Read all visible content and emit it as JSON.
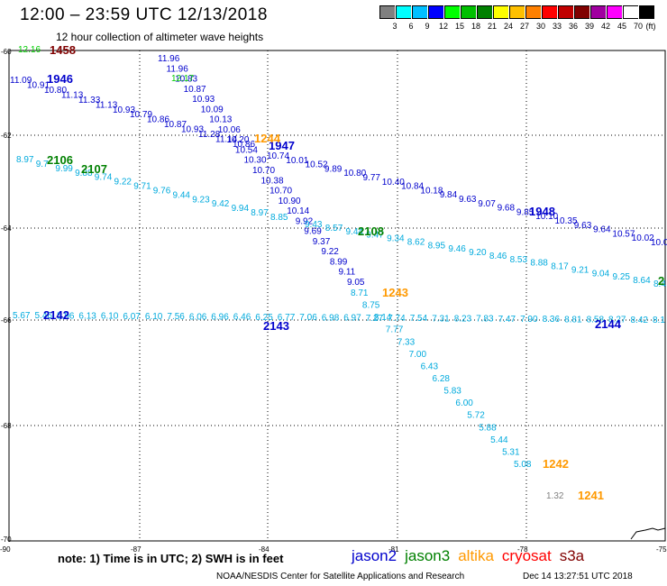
{
  "header": {
    "title": "12:00 – 23:59 UTC 12/13/2018",
    "subtitle": "12 hour collection of altimeter wave heights"
  },
  "color_scale": {
    "labels": [
      "3",
      "6",
      "9",
      "12",
      "15",
      "18",
      "21",
      "24",
      "27",
      "30",
      "33",
      "36",
      "39",
      "42",
      "45",
      "70"
    ],
    "unit": "(ft)",
    "colors": [
      "#808080",
      "#00ffff",
      "#00bfff",
      "#0000ff",
      "#00ff00",
      "#00c000",
      "#008000",
      "#ffff00",
      "#ffc000",
      "#ff8000",
      "#ff0000",
      "#c00000",
      "#800000",
      "#a000a0",
      "#ff00ff",
      "#ffffff",
      "#000000"
    ]
  },
  "map": {
    "lon_labels": [
      "-90",
      "-87",
      "-84",
      "-81",
      "-78",
      "-75"
    ],
    "lat_labels": [
      "-60",
      "-62",
      "-64",
      "-66",
      "-68",
      "-70"
    ],
    "time_labels": [
      {
        "text": "1458",
        "color": "#800000"
      },
      {
        "text": "1946",
        "color": "#0000cc"
      },
      {
        "text": "1947",
        "color": "#0000cc"
      },
      {
        "text": "1948",
        "color": "#0000cc"
      },
      {
        "text": "1244",
        "color": "#ff9900"
      },
      {
        "text": "1243",
        "color": "#ff9900"
      },
      {
        "text": "1242",
        "color": "#ff9900"
      },
      {
        "text": "1241",
        "color": "#ff9900"
      },
      {
        "text": "2106",
        "color": "#008000"
      },
      {
        "text": "2107",
        "color": "#008000"
      },
      {
        "text": "2108",
        "color": "#008000"
      },
      {
        "text": "2142",
        "color": "#0000cc"
      },
      {
        "text": "2143",
        "color": "#0000cc"
      },
      {
        "text": "2144",
        "color": "#0000cc"
      },
      {
        "text": "2",
        "color": "#008000"
      }
    ],
    "tracks": [
      {
        "name": "jason2-1946",
        "color": "#0000cc",
        "values": [
          "11.09",
          "10.91",
          "10.80",
          "11.13",
          "11.33",
          "11.13",
          "10.93",
          "10.79",
          "10.86",
          "10.87",
          "10.93",
          "11.28",
          "11.14",
          "10.86"
        ]
      },
      {
        "name": "jason2-1947",
        "color": "#0000cc",
        "values": [
          "11.96",
          "11.96",
          "10.83",
          "10.87",
          "10.93",
          "10.09",
          "10.13",
          "10.06",
          "10.20",
          "10.54",
          "10.30",
          "10.70",
          "10.38",
          "10.70",
          "10.90",
          "10.14",
          "9.92",
          "9.69",
          "9.37",
          "9.22",
          "8.99",
          "9.11",
          "9.05"
        ]
      },
      {
        "name": "jason2-1948",
        "color": "#0000cc",
        "values": [
          "10.74",
          "10.01",
          "10.52",
          "9.89",
          "10.80",
          "9.77",
          "10.40",
          "10.84",
          "10.18",
          "9.84",
          "9.63",
          "9.07",
          "9.68",
          "9.85",
          "10.10",
          "10.35",
          "9.63",
          "9.64",
          "10.57",
          "10.02",
          "10.0"
        ]
      },
      {
        "name": "jason3-2106",
        "color": "#00aadd",
        "values": [
          "8.97",
          "9.7",
          "9.99",
          "9.88",
          "9.74",
          "9.22",
          "9.71",
          "9.76",
          "9.44",
          "9.23",
          "9.42",
          "9.94",
          "8.97",
          "8.85"
        ]
      },
      {
        "name": "jason3-2108",
        "color": "#00aadd",
        "values": [
          "9.43",
          "8.57",
          "9.44",
          "9.47",
          "9.34",
          "8.62",
          "8.95",
          "9.46",
          "9.20",
          "8.46",
          "8.53",
          "8.88",
          "8.17",
          "9.21",
          "9.04",
          "9.25",
          "8.64",
          "8.4"
        ]
      },
      {
        "name": "jason3-214x",
        "color": "#00aadd",
        "values": [
          "5.67",
          "5.46",
          "5.96",
          "6.13",
          "6.10",
          "6.07",
          "6.10",
          "7.56",
          "6.06",
          "6.96",
          "6.46",
          "6.25",
          "6.77",
          "7.06",
          "6.98",
          "6.97",
          "7.27",
          "7.74",
          "7.54",
          "7.31",
          "8.23",
          "7.83",
          "7.47",
          "7.90",
          "8.36",
          "8.81",
          "8.58",
          "8.27",
          "8.42",
          "8.1"
        ]
      },
      {
        "name": "altika-124x",
        "color": "#00aadd",
        "values": [
          "8.71",
          "8.75",
          "8.14",
          "7.77",
          "7.33",
          "7.00",
          "6.43",
          "6.28",
          "5.83",
          "6.00",
          "5.72",
          "5.88",
          "5.44",
          "5.31",
          "5.08"
        ]
      },
      {
        "name": "altika-1244",
        "color": "#00cc00",
        "values": [
          "12.16",
          "12.17"
        ]
      },
      {
        "name": "altika-1241",
        "color": "#808080",
        "values": [
          "1.32"
        ]
      }
    ]
  },
  "footer": {
    "note": "note: 1) Time is in UTC; 2) SWH is in feet",
    "legend": [
      {
        "text": "jason2",
        "color": "#0000cc"
      },
      {
        "text": "jason3",
        "color": "#008000"
      },
      {
        "text": "altika",
        "color": "#ff9900"
      },
      {
        "text": "cryosat",
        "color": "#ff0000"
      },
      {
        "text": "s3a",
        "color": "#800000"
      }
    ],
    "credit": "NOAA/NESDIS Center for Satellite Applications and Research",
    "timestamp": "Dec 14 13:27:51 UTC 2018"
  }
}
